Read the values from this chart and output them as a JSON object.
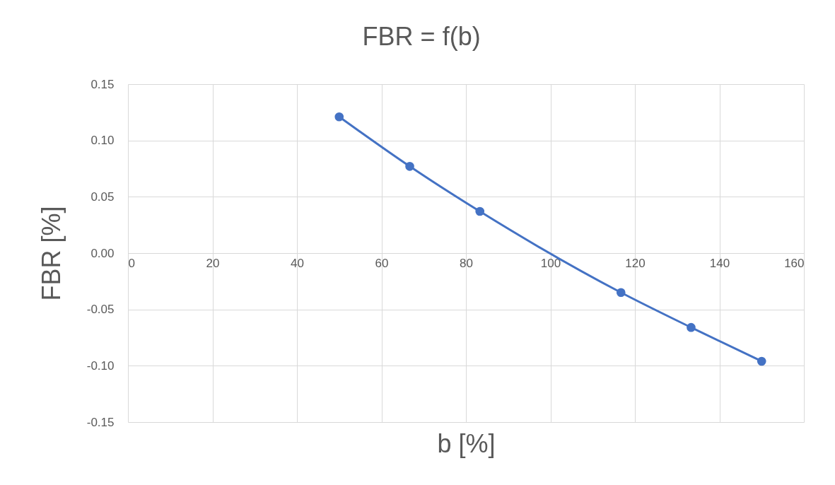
{
  "chart_data": {
    "type": "line",
    "title": "FBR = f(b)",
    "xlabel": "b [%]",
    "ylabel": "FBR [%]",
    "x": [
      50,
      66.7,
      83.3,
      116.7,
      133.3,
      150
    ],
    "series": [
      {
        "color": "#4472c4",
        "values": [
          0.121,
          0.077,
          0.037,
          -0.035,
          -0.066,
          -0.096
        ]
      }
    ],
    "xlim": [
      0,
      160
    ],
    "xticks": [
      0,
      20,
      40,
      60,
      80,
      100,
      120,
      140,
      160
    ],
    "ylim": [
      -0.15,
      0.15
    ],
    "yticks": [
      -0.15,
      {
        "value": -0.1,
        "label": "-0.10"
      },
      -0.05,
      {
        "value": 0,
        "label": "0.00"
      },
      0.05,
      {
        "value": 0.1,
        "label": "0.10"
      },
      0.15
    ],
    "grid": true,
    "marker": "circle"
  }
}
